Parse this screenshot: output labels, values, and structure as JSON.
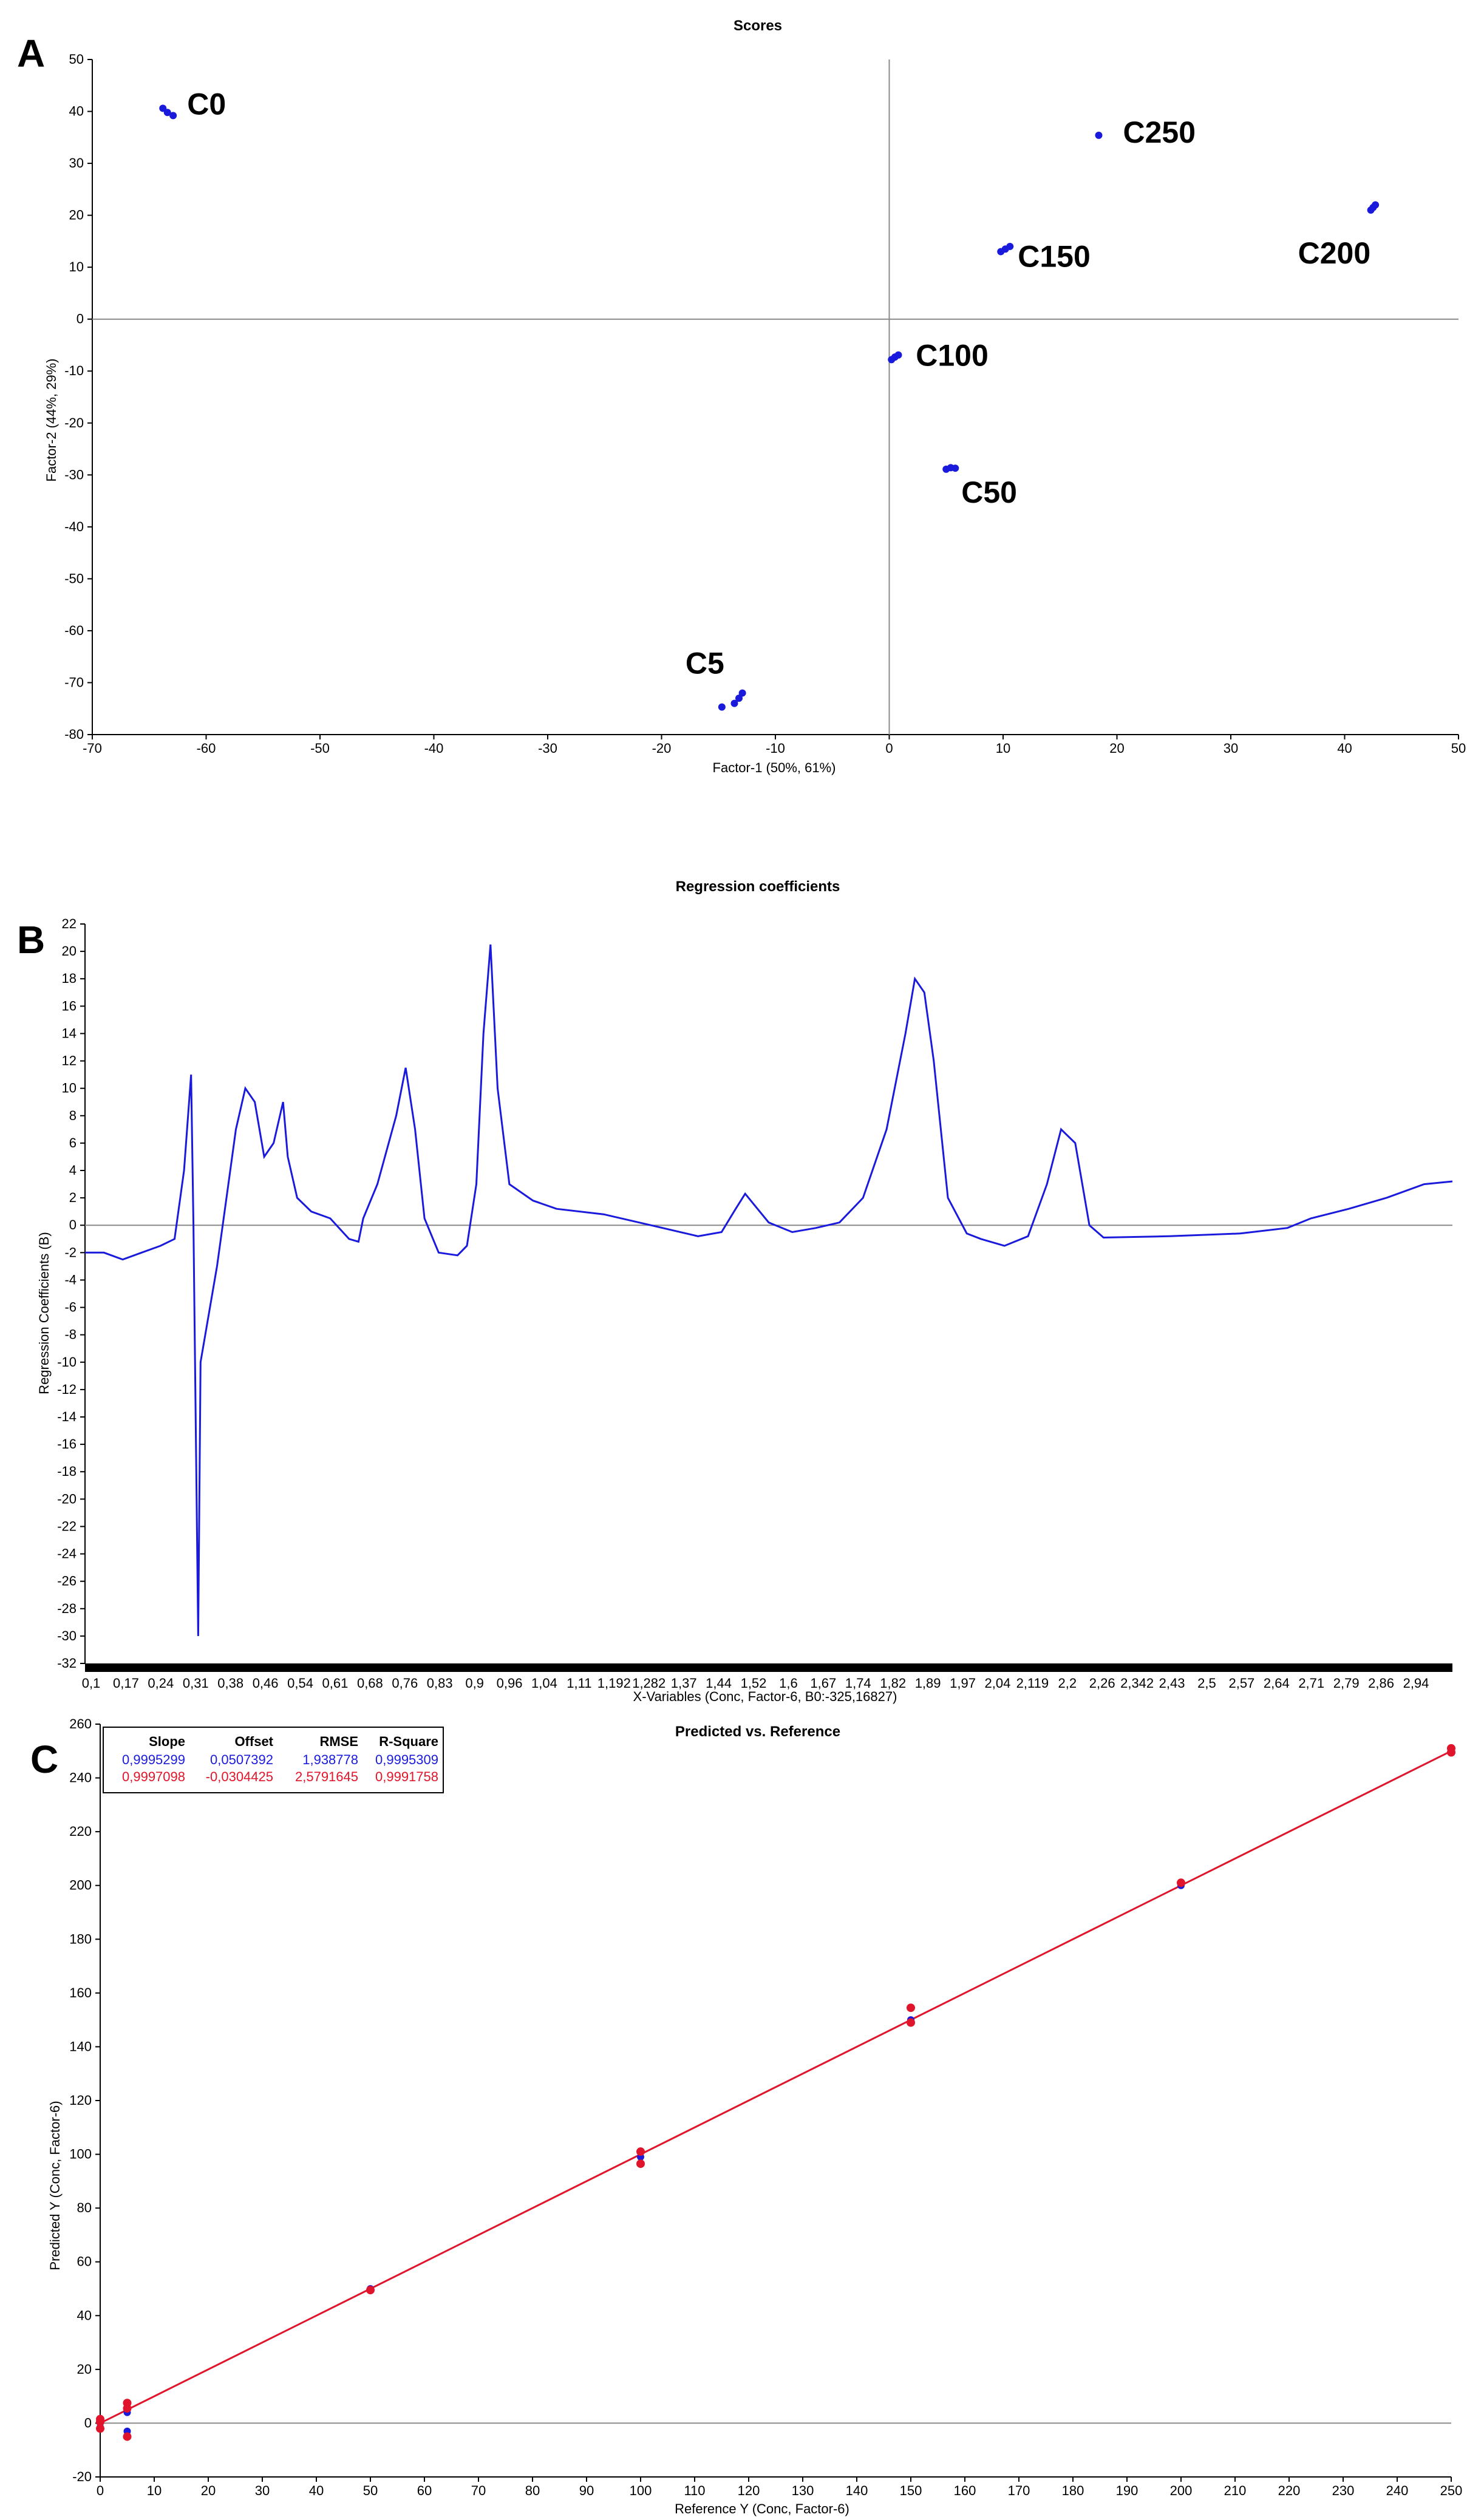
{
  "panels": {
    "a": "A",
    "b": "B",
    "c": "C"
  },
  "colors": {
    "blue": "#1a1adc",
    "red": "#e0142a",
    "axis": "#000000",
    "zero": "#8a8a8a"
  },
  "chart_data": [
    {
      "type": "scatter",
      "title": "Scores",
      "xlabel": "Factor-1 (50%, 61%)",
      "ylabel": "Factor-2 (44%, 29%)",
      "xlim": [
        -70,
        50
      ],
      "ylim": [
        -80,
        50
      ],
      "xticks": [
        -70,
        -60,
        -50,
        -40,
        -30,
        -20,
        -10,
        0,
        10,
        20,
        30,
        40,
        50
      ],
      "yticks": [
        -80,
        -70,
        -60,
        -50,
        -40,
        -30,
        -20,
        -10,
        0,
        10,
        20,
        30,
        40,
        50
      ],
      "groups": [
        {
          "name": "C0",
          "points": [
            [
              -63.8,
              40.6
            ],
            [
              -63.4,
              39.8
            ],
            [
              -62.9,
              39.2
            ]
          ]
        },
        {
          "name": "C5",
          "points": [
            [
              -14.7,
              -74.7
            ],
            [
              -13.6,
              -74.0
            ],
            [
              -13.2,
              -73.0
            ],
            [
              -12.9,
              -72.0
            ]
          ]
        },
        {
          "name": "C50",
          "points": [
            [
              5.0,
              -28.9
            ],
            [
              5.4,
              -28.6
            ],
            [
              5.8,
              -28.7
            ]
          ]
        },
        {
          "name": "C100",
          "points": [
            [
              0.2,
              -7.8
            ],
            [
              0.5,
              -7.3
            ],
            [
              0.8,
              -6.9
            ]
          ]
        },
        {
          "name": "C150",
          "points": [
            [
              9.8,
              13.0
            ],
            [
              10.2,
              13.5
            ],
            [
              10.6,
              14.0
            ]
          ]
        },
        {
          "name": "C200",
          "points": [
            [
              42.3,
              21.0
            ],
            [
              42.5,
              21.5
            ],
            [
              42.7,
              22.0
            ]
          ]
        },
        {
          "name": "C250",
          "points": [
            [
              18.4,
              35.4
            ]
          ]
        }
      ]
    },
    {
      "type": "line",
      "title": "Regression coefficients",
      "xlabel": "X-Variables (Conc, Factor-6, B0:-325,16827)",
      "ylabel": "Regression Coefficients (B)",
      "xlim": [
        0.1,
        3.0
      ],
      "ylim": [
        -32,
        22
      ],
      "yticks": [
        -32,
        -30,
        -28,
        -26,
        -24,
        -22,
        -20,
        -18,
        -16,
        -14,
        -12,
        -10,
        -8,
        -6,
        -4,
        -2,
        0,
        2,
        4,
        6,
        8,
        10,
        12,
        14,
        16,
        18,
        20,
        22
      ],
      "xtick_labels": [
        "0,1",
        "0,17",
        "0,24",
        "0,31",
        "0,38",
        "0,46",
        "0,54",
        "0,61",
        "0,68",
        "0,76",
        "0,83",
        "0,9",
        "0,96",
        "1,04",
        "1,11",
        "1,192",
        "1,282",
        "1,37",
        "1,44",
        "1,52",
        "1,6",
        "1,67",
        "1,74",
        "1,82",
        "1,89",
        "1,97",
        "2,04",
        "2,119",
        "2,2",
        "2,26",
        "2,342",
        "2,43",
        "2,5",
        "2,57",
        "2,64",
        "2,71",
        "2,79",
        "2,86",
        "2,94"
      ],
      "series": [
        {
          "x": [
            0.1,
            0.14,
            0.18,
            0.22,
            0.26,
            0.29,
            0.31,
            0.325,
            0.33,
            0.34,
            0.345,
            0.36,
            0.38,
            0.4,
            0.42,
            0.44,
            0.46,
            0.48,
            0.5,
            0.52,
            0.53,
            0.55,
            0.58,
            0.62,
            0.66,
            0.68,
            0.69,
            0.72,
            0.76,
            0.78,
            0.8,
            0.82,
            0.85,
            0.89,
            0.91,
            0.93,
            0.945,
            0.96,
            0.975,
            1.0,
            1.05,
            1.1,
            1.2,
            1.3,
            1.4,
            1.45,
            1.48,
            1.5,
            1.55,
            1.6,
            1.65,
            1.7,
            1.75,
            1.8,
            1.84,
            1.86,
            1.88,
            1.9,
            1.93,
            1.97,
            2.0,
            2.05,
            2.1,
            2.14,
            2.17,
            2.2,
            2.23,
            2.26,
            2.4,
            2.55,
            2.65,
            2.7,
            2.78,
            2.86,
            2.94,
            3.0
          ],
          "y": [
            -2.0,
            -2.0,
            -2.5,
            -2.0,
            -1.5,
            -1.0,
            4.0,
            11.0,
            0.0,
            -30.0,
            -10.0,
            -7.0,
            -3.0,
            2.0,
            7.0,
            10.0,
            9.0,
            5.0,
            6.0,
            9.0,
            5.0,
            2.0,
            1.0,
            0.5,
            -1.0,
            -1.2,
            0.5,
            3.0,
            8.0,
            11.5,
            7.0,
            0.5,
            -2.0,
            -2.2,
            -1.5,
            3.0,
            14.0,
            20.5,
            10.0,
            3.0,
            1.8,
            1.2,
            0.8,
            0.0,
            -0.8,
            -0.5,
            1.2,
            2.3,
            0.2,
            -0.5,
            -0.2,
            0.2,
            2.0,
            7.0,
            14.0,
            18.0,
            17.0,
            12.0,
            2.0,
            -0.6,
            -1.0,
            -1.5,
            -0.8,
            3.0,
            7.0,
            6.0,
            0.0,
            -0.9,
            -0.8,
            -0.6,
            -0.2,
            0.5,
            1.2,
            2.0,
            3.0,
            3.2
          ]
        }
      ]
    },
    {
      "type": "scatter",
      "title": "Predicted vs. Reference",
      "xlabel": "Reference Y (Conc, Factor-6)",
      "ylabel": "Predicted Y (Conc, Factor-6)",
      "xlim": [
        0,
        250
      ],
      "ylim": [
        -20,
        260
      ],
      "xticks": [
        0,
        10,
        20,
        30,
        40,
        50,
        60,
        70,
        80,
        90,
        100,
        110,
        120,
        130,
        140,
        150,
        160,
        170,
        180,
        190,
        200,
        210,
        220,
        230,
        240,
        250
      ],
      "yticks": [
        -20,
        0,
        20,
        40,
        60,
        80,
        100,
        120,
        140,
        160,
        180,
        200,
        220,
        240,
        260
      ],
      "stats_table": {
        "headers": [
          "Slope",
          "Offset",
          "RMSE",
          "R-Square"
        ],
        "rows": [
          [
            "0,9995299",
            "0,0507392",
            "1,938778",
            "0,9995309"
          ],
          [
            "0,9997098",
            "-0,0304425",
            "2,5791645",
            "0,9991758"
          ]
        ]
      },
      "series": [
        {
          "points": [
            [
              0,
              0
            ],
            [
              0,
              1
            ],
            [
              0,
              -1.5
            ],
            [
              5,
              4
            ],
            [
              5,
              -3
            ],
            [
              50,
              50
            ],
            [
              100,
              99
            ],
            [
              150,
              150
            ],
            [
              200,
              200
            ],
            [
              250,
              250
            ]
          ]
        },
        {
          "points": [
            [
              0,
              1.5
            ],
            [
              0,
              -2
            ],
            [
              0,
              0.5
            ],
            [
              5,
              7.5
            ],
            [
              5,
              5.5
            ],
            [
              5,
              -5
            ],
            [
              50,
              49.5
            ],
            [
              100,
              101
            ],
            [
              100,
              96.5
            ],
            [
              150,
              154.5
            ],
            [
              150,
              149
            ],
            [
              200,
              201
            ],
            [
              250,
              249.5
            ],
            [
              250,
              251
            ]
          ]
        }
      ],
      "fit_line": [
        [
          0,
          0
        ],
        [
          250,
          250
        ]
      ]
    }
  ]
}
